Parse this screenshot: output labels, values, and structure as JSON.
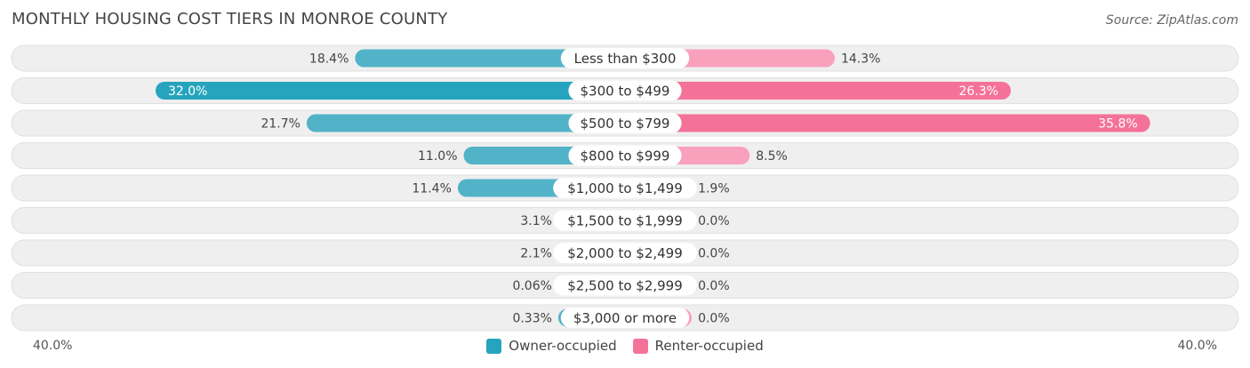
{
  "header": {
    "title": "MONTHLY HOUSING COST TIERS IN MONROE COUNTY",
    "source": "Source: ZipAtlas.com"
  },
  "colors": {
    "owner": "#52b3c8",
    "owner_strong": "#27a4bd",
    "renter": "#f9a0bd",
    "renter_strong": "#f4729a",
    "row_bg": "#efefef",
    "row_border": "#e0e0e0"
  },
  "chart_data": {
    "type": "bar",
    "orientation": "horizontal-diverging",
    "title": "MONTHLY HOUSING COST TIERS IN MONROE COUNTY",
    "categories": [
      "Less than $300",
      "$300 to $499",
      "$500 to $799",
      "$800 to $999",
      "$1,000 to $1,499",
      "$1,500 to $1,999",
      "$2,000 to $2,499",
      "$2,500 to $2,999",
      "$3,000 or more"
    ],
    "series": [
      {
        "name": "Owner-occupied",
        "side": "left",
        "values": [
          18.4,
          32.0,
          21.7,
          11.0,
          11.4,
          3.1,
          2.1,
          0.06,
          0.33
        ],
        "labels": [
          "18.4%",
          "32.0%",
          "21.7%",
          "11.0%",
          "11.4%",
          "3.1%",
          "2.1%",
          "0.06%",
          "0.33%"
        ]
      },
      {
        "name": "Renter-occupied",
        "side": "right",
        "values": [
          14.3,
          26.3,
          35.8,
          8.5,
          1.9,
          0.0,
          0.0,
          0.0,
          0.0
        ],
        "labels": [
          "14.3%",
          "26.3%",
          "35.8%",
          "8.5%",
          "1.9%",
          "0.0%",
          "0.0%",
          "0.0%",
          "0.0%"
        ]
      }
    ],
    "xlim": [
      -40,
      40
    ],
    "axis_labels": {
      "left": "40.0%",
      "right": "40.0%"
    },
    "legend": {
      "placement": "bottom-center",
      "entries": [
        "Owner-occupied",
        "Renter-occupied"
      ]
    }
  }
}
